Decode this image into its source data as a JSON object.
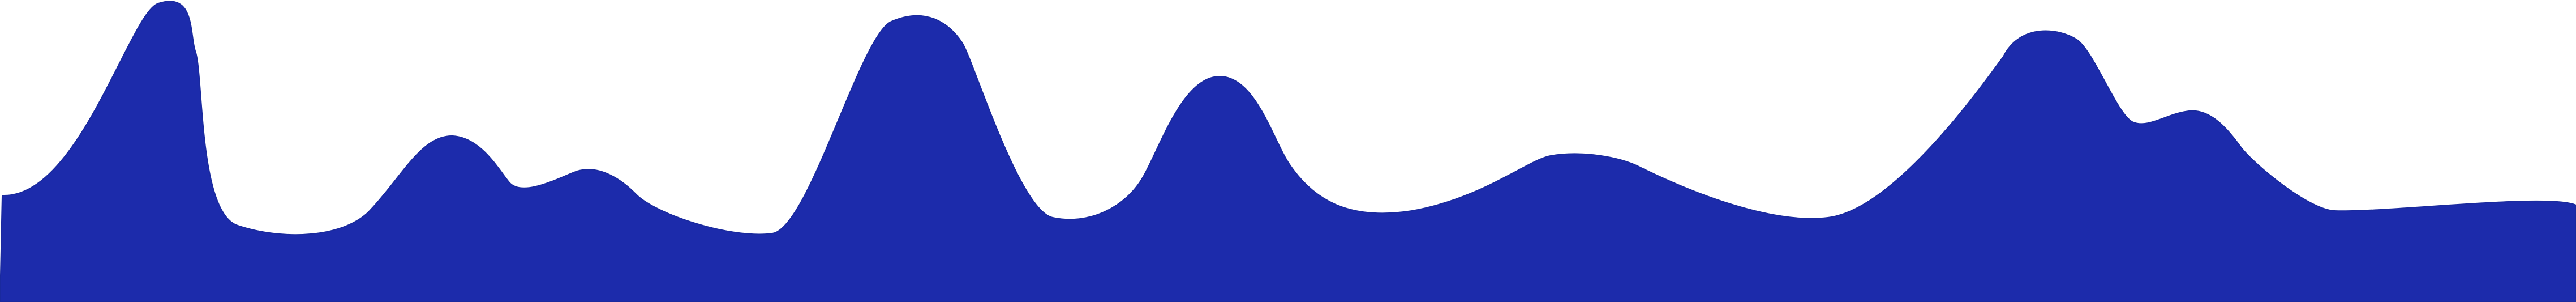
{
  "shape": {
    "kind": "wave-silhouette",
    "fill_color": "#1c2bab",
    "stroke_color": "#1a2a9e",
    "background_color": "#ffffff"
  }
}
